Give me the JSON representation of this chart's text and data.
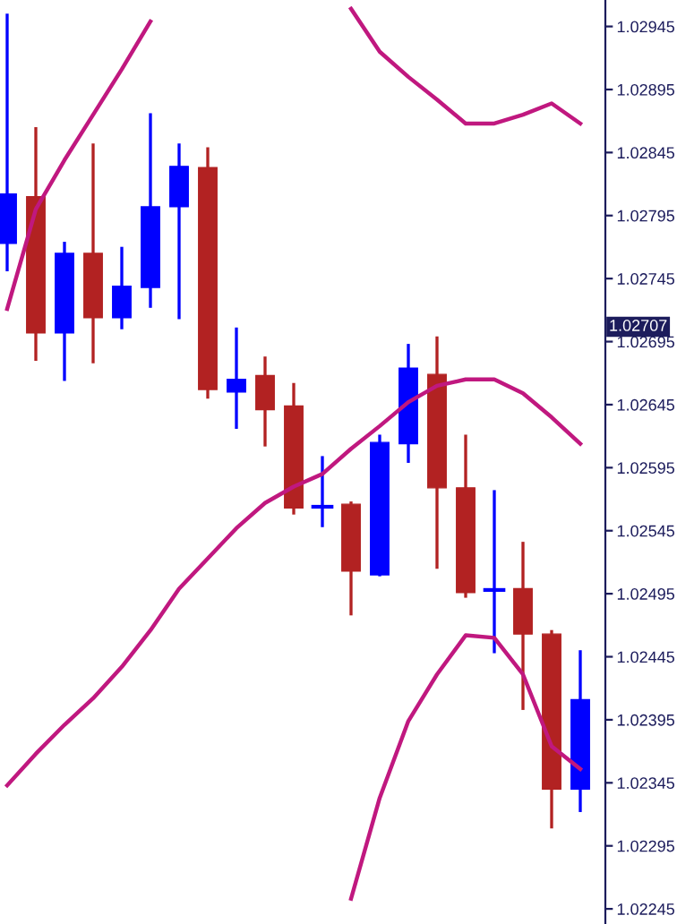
{
  "chart_data": {
    "type": "candlestick",
    "categories": [
      null,
      null,
      null,
      null,
      null,
      null,
      null,
      null,
      null,
      null,
      null,
      null,
      null,
      null,
      null,
      null,
      null,
      null,
      null,
      null,
      null
    ],
    "ohlc": [
      [
        1.02773,
        1.02954,
        1.02752,
        1.02812
      ],
      [
        1.0281,
        1.02864,
        1.02681,
        1.02702
      ],
      [
        1.02702,
        1.02773,
        1.02665,
        1.02765
      ],
      [
        1.02765,
        1.02851,
        1.02679,
        1.02714
      ],
      [
        1.02714,
        1.02769,
        1.02706,
        1.02739
      ],
      [
        1.02738,
        1.02875,
        1.02723,
        1.02802
      ],
      [
        1.02802,
        1.02851,
        1.02714,
        1.02834
      ],
      [
        1.02833,
        1.02848,
        1.02651,
        1.02657
      ],
      [
        1.02655,
        1.02705,
        1.02627,
        1.02665
      ],
      [
        1.02668,
        1.02682,
        1.02613,
        1.02641
      ],
      [
        1.02644,
        1.02661,
        1.02559,
        1.02563
      ],
      [
        1.02564,
        1.02603,
        1.02549,
        1.02564
      ],
      [
        1.02566,
        1.02567,
        1.02479,
        1.02513
      ],
      [
        1.0251,
        1.0262,
        1.0251,
        1.02615
      ],
      [
        1.02614,
        1.02692,
        1.026,
        1.02674
      ],
      [
        1.02669,
        1.02698,
        1.02516,
        1.02579
      ],
      [
        1.02579,
        1.0262,
        1.02493,
        1.02496
      ],
      [
        1.02498,
        1.02576,
        1.02449,
        1.02498
      ],
      [
        1.02499,
        1.02535,
        1.02404,
        1.02463
      ],
      [
        1.02463,
        1.02465,
        1.0231,
        1.0234
      ],
      [
        1.0234,
        1.02449,
        1.02323,
        1.02411
      ]
    ],
    "colors": [
      "#0000ff",
      "#b22222",
      "#0000ff",
      "#b22222",
      "#0000ff",
      "#0000ff",
      "#0000ff",
      "#b22222",
      "#0000ff",
      "#b22222",
      "#b22222",
      "#0000ff",
      "#b22222",
      "#0000ff",
      "#0000ff",
      "#b22222",
      "#b22222",
      "#0000ff",
      "#b22222",
      "#b22222",
      "#0000ff"
    ],
    "series": [
      {
        "type": "line",
        "color": "#c0187f",
        "values": [
          1.02721,
          1.028,
          1.02839,
          1.02875,
          1.02911,
          1.02949,
          null,
          null,
          null,
          null,
          null,
          null,
          1.02959,
          1.02925,
          1.02905,
          1.02887,
          1.02868,
          1.02868,
          1.02875,
          1.02884,
          1.02868
        ]
      },
      {
        "type": "line",
        "color": "#c0187f",
        "values": [
          1.02343,
          1.02368,
          1.02391,
          1.02412,
          1.02437,
          1.02466,
          1.02499,
          1.02523,
          1.02547,
          1.02567,
          1.0258,
          1.0259,
          1.0261,
          1.02628,
          1.02647,
          1.0266,
          1.02665,
          1.02665,
          1.02654,
          1.02635,
          1.02614
        ]
      },
      {
        "type": "line",
        "color": "#c0187f",
        "values": [
          null,
          null,
          null,
          null,
          null,
          null,
          null,
          null,
          null,
          null,
          null,
          null,
          1.02253,
          1.02333,
          1.02394,
          1.02431,
          1.02462,
          1.0246,
          1.02431,
          1.02374,
          1.02356
        ]
      }
    ],
    "ylim": [
      1.02233,
      1.02966
    ],
    "yticks": [
      1.02245,
      1.02295,
      1.02345,
      1.02395,
      1.02445,
      1.02495,
      1.02545,
      1.02595,
      1.02645,
      1.02695,
      1.02745,
      1.02795,
      1.02845,
      1.02895,
      1.02945
    ],
    "annotations": [
      "1.02707"
    ],
    "grid": false,
    "legend": false
  }
}
